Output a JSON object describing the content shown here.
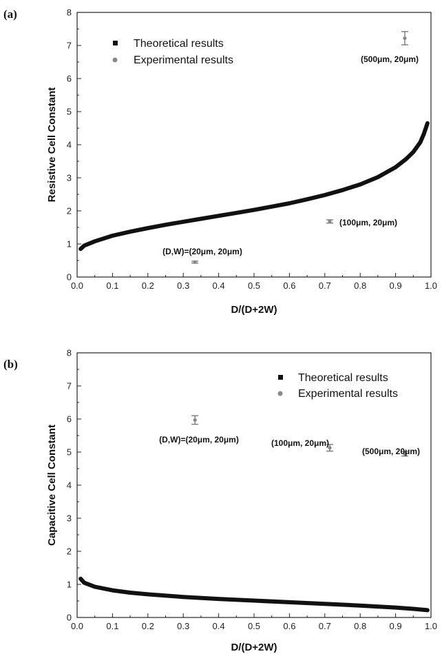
{
  "chart_data": [
    {
      "type": "scatter",
      "panel_label": "(a)",
      "xlabel": "D/(D+2W)",
      "ylabel": "Resistive Cell Constant",
      "xlim": [
        0.0,
        1.0
      ],
      "ylim": [
        0,
        8
      ],
      "xticks": [
        "0.0",
        "0.1",
        "0.2",
        "0.3",
        "0.4",
        "0.5",
        "0.6",
        "0.7",
        "0.8",
        "0.9",
        "1.0"
      ],
      "yticks": [
        "0",
        "1",
        "2",
        "3",
        "4",
        "5",
        "6",
        "7",
        "8"
      ],
      "legend_position": "top-left",
      "series": [
        {
          "name": "Theoretical results",
          "color": "#111111",
          "x": [
            0.01,
            0.02,
            0.05,
            0.1,
            0.15,
            0.2,
            0.25,
            0.3,
            0.35,
            0.4,
            0.45,
            0.5,
            0.55,
            0.6,
            0.65,
            0.7,
            0.75,
            0.8,
            0.85,
            0.9,
            0.93,
            0.95,
            0.97,
            0.98,
            0.99
          ],
          "y": [
            0.85,
            0.95,
            1.08,
            1.25,
            1.37,
            1.48,
            1.58,
            1.67,
            1.76,
            1.85,
            1.94,
            2.03,
            2.13,
            2.23,
            2.35,
            2.48,
            2.63,
            2.8,
            3.02,
            3.32,
            3.57,
            3.78,
            4.08,
            4.33,
            4.65
          ]
        },
        {
          "name": "Experimental results",
          "color": "#888888",
          "points": [
            {
              "x": 0.333,
              "y": 0.45,
              "err": 0.03,
              "label": "(D,W)=(20μm, 20μm)"
            },
            {
              "x": 0.714,
              "y": 1.68,
              "err": 0.05,
              "label": "(100μm, 20μm)"
            },
            {
              "x": 0.926,
              "y": 7.22,
              "err": 0.2,
              "label": "(500μm, 20μm)"
            }
          ]
        }
      ]
    },
    {
      "type": "scatter",
      "panel_label": "(b)",
      "xlabel": "D/(D+2W)",
      "ylabel": "Capacitive Cell Constant",
      "xlim": [
        0.0,
        1.0
      ],
      "ylim": [
        0,
        8
      ],
      "xticks": [
        "0.0",
        "0.1",
        "0.2",
        "0.3",
        "0.4",
        "0.5",
        "0.6",
        "0.7",
        "0.8",
        "0.9",
        "1.0"
      ],
      "yticks": [
        "0",
        "1",
        "2",
        "3",
        "4",
        "5",
        "6",
        "7",
        "8"
      ],
      "legend_position": "top-right",
      "series": [
        {
          "name": "Theoretical results",
          "color": "#111111",
          "x": [
            0.01,
            0.02,
            0.05,
            0.1,
            0.15,
            0.2,
            0.3,
            0.4,
            0.5,
            0.6,
            0.7,
            0.8,
            0.9,
            0.95,
            0.99
          ],
          "y": [
            1.17,
            1.05,
            0.93,
            0.82,
            0.75,
            0.7,
            0.62,
            0.56,
            0.51,
            0.46,
            0.41,
            0.36,
            0.3,
            0.26,
            0.22
          ]
        },
        {
          "name": "Experimental results",
          "color": "#888888",
          "points": [
            {
              "x": 0.333,
              "y": 5.97,
              "err": 0.13,
              "label": "(D,W)=(20μm, 20μm)"
            },
            {
              "x": 0.714,
              "y": 5.13,
              "err": 0.1,
              "label": "(100μm, 20μm)"
            },
            {
              "x": 0.926,
              "y": 4.95,
              "err": 0.07,
              "label": "(500μm, 20μm)"
            }
          ]
        }
      ]
    }
  ]
}
